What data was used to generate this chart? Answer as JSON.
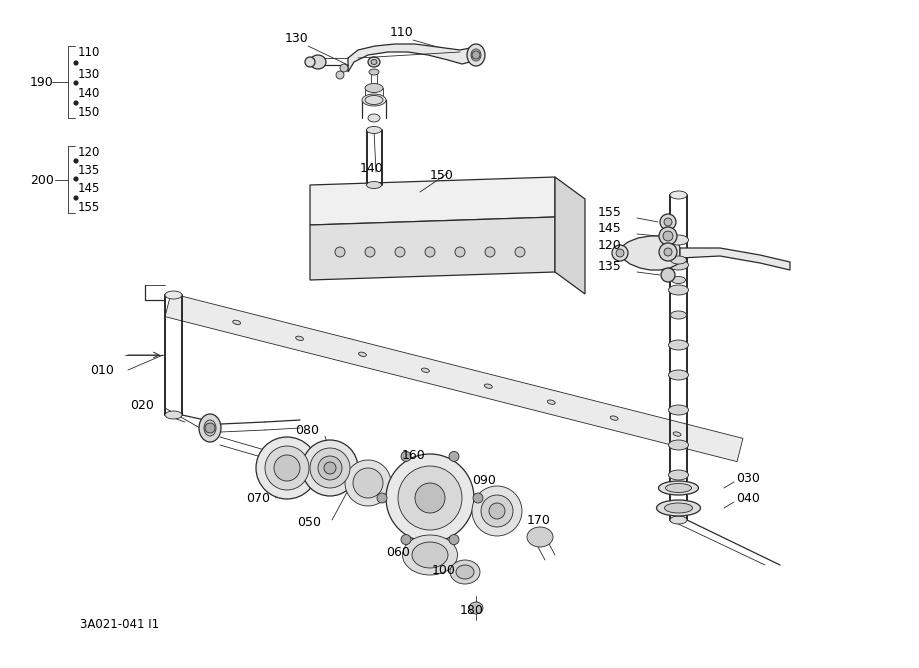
{
  "diagram_code": "3A021-041 I1",
  "bg_color": "#ffffff",
  "line_color": "#2a2a2a",
  "figsize": [
    9.19,
    6.68
  ],
  "dpi": 100,
  "lw_thin": 0.6,
  "lw_med": 0.9,
  "lw_thick": 1.4
}
